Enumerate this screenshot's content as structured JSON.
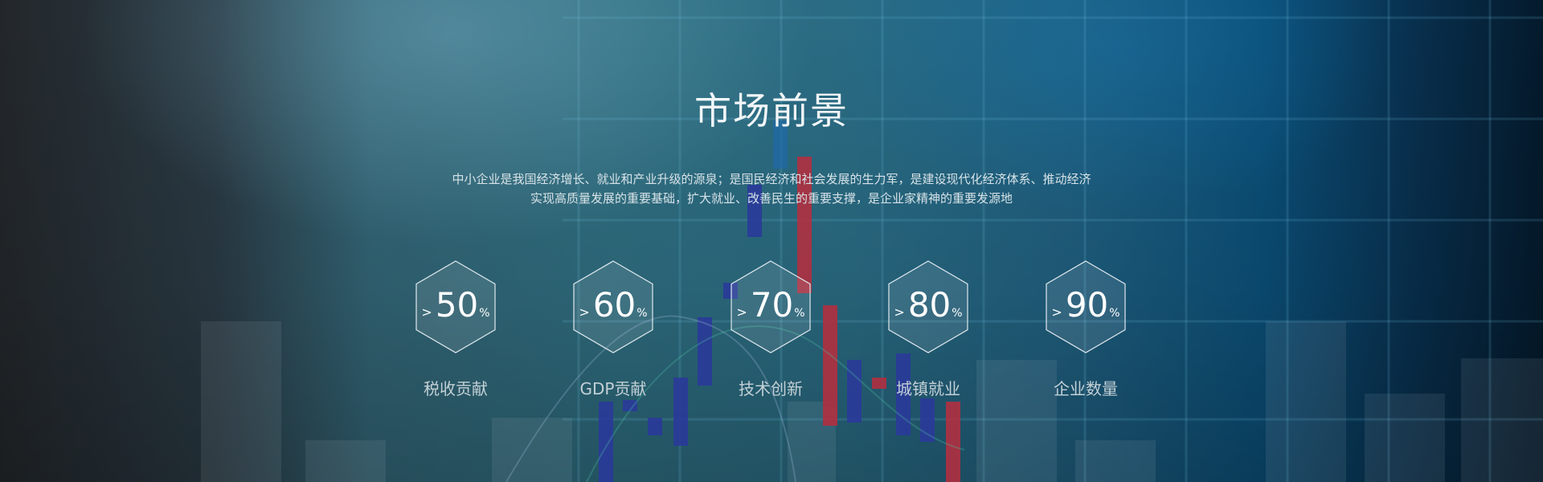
{
  "title": "市场前景",
  "description": {
    "line1": "中小企业是我国经济增长、就业和产业升级的源泉；是国民经济和社会发展的生力军，是建设现代化经济体系、推动经济",
    "line2": "实现高质量发展的重要基础，扩大就业、改善民生的重要支撑，是企业家精神的重要发源地"
  },
  "stats": [
    {
      "prefix": ">",
      "value": "50",
      "unit": "%",
      "label": "税收贡献"
    },
    {
      "prefix": ">",
      "value": "60",
      "unit": "%",
      "label": "GDP贡献"
    },
    {
      "prefix": ">",
      "value": "70",
      "unit": "%",
      "label": "技术创新"
    },
    {
      "prefix": ">",
      "value": "80",
      "unit": "%",
      "label": "城镇就业"
    },
    {
      "prefix": ">",
      "value": "90",
      "unit": "%",
      "label": "企业数量"
    }
  ],
  "colors": {
    "candle_down": "#2a3a9a",
    "candle_up": "#b03040",
    "hex_stroke": "#dfe9ee"
  }
}
